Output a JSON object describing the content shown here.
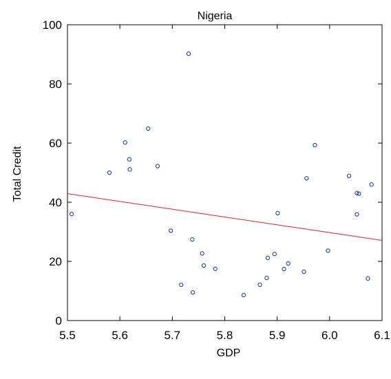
{
  "chart_data": {
    "type": "scatter",
    "title": "Nigeria",
    "xlabel": "GDP",
    "ylabel": "Total Credit",
    "xlim": [
      5.5,
      6.1
    ],
    "ylim": [
      0,
      100
    ],
    "x_ticks": [
      "5.5",
      "5.6",
      "5.7",
      "5.8",
      "5.9",
      "6.0",
      "6.1"
    ],
    "y_ticks": [
      "0",
      "20",
      "40",
      "60",
      "80",
      "100"
    ],
    "grid": false,
    "legend": "none",
    "colors": {
      "points": "#1f3f9a",
      "fit_line": "#e02020",
      "axes": "#000000"
    },
    "series": [
      {
        "points": [
          [
            5.508,
            36.0
          ],
          [
            5.58,
            50.0
          ],
          [
            5.61,
            60.2
          ],
          [
            5.618,
            54.5
          ],
          [
            5.619,
            51.1
          ],
          [
            5.654,
            64.9
          ],
          [
            5.672,
            52.2
          ],
          [
            5.697,
            30.4
          ],
          [
            5.717,
            12.1
          ],
          [
            5.731,
            90.2
          ],
          [
            5.738,
            27.4
          ],
          [
            5.739,
            9.5
          ],
          [
            5.757,
            22.7
          ],
          [
            5.76,
            18.6
          ],
          [
            5.782,
            17.5
          ],
          [
            5.836,
            8.6
          ],
          [
            5.867,
            12.1
          ],
          [
            5.88,
            14.4
          ],
          [
            5.882,
            21.2
          ],
          [
            5.895,
            22.5
          ],
          [
            5.901,
            36.3
          ],
          [
            5.913,
            17.4
          ],
          [
            5.921,
            19.3
          ],
          [
            5.951,
            16.5
          ],
          [
            5.956,
            48.1
          ],
          [
            5.972,
            59.3
          ],
          [
            5.997,
            23.6
          ],
          [
            6.037,
            48.9
          ],
          [
            6.052,
            35.9
          ],
          [
            6.052,
            43.1
          ],
          [
            6.056,
            42.9
          ],
          [
            6.073,
            14.2
          ],
          [
            6.08,
            46.0
          ]
        ]
      }
    ],
    "fit_line": {
      "x": [
        5.5,
        6.1
      ],
      "y": [
        42.9,
        27.1
      ]
    }
  }
}
